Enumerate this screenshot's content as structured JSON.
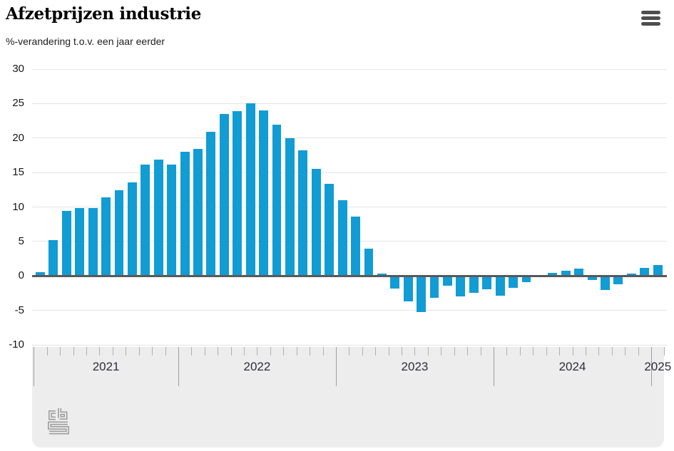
{
  "header": {
    "title": "Afzetprijzen industrie",
    "subtitle": "%-verandering t.o.v. een jaar eerder"
  },
  "menu": {
    "icon": "hamburger-menu-icon"
  },
  "branding": {
    "logo": "cbs-logo"
  },
  "colors": {
    "bar": "#119cd4",
    "grid": "#e4e4e4",
    "zero_line": "#58585c",
    "axis_band_background": "#ededee",
    "tick_small": "#b1b1b1",
    "tick_long": "#9e9e9e",
    "year_label": "#2d2d3a",
    "logo_gray": "#9e9e9e"
  },
  "chart_data": {
    "type": "bar",
    "title": "Afzetprijzen industrie",
    "subtitle": "%-verandering t.o.v. een jaar eerder",
    "unit": "%",
    "ylim": [
      -10,
      30
    ],
    "yticks": [
      30,
      25,
      20,
      15,
      10,
      5,
      0,
      -5,
      -10
    ],
    "grid": true,
    "legend": "none",
    "x_unit": "month",
    "first_month": "2021-02",
    "last_month": "2025-01",
    "year_labels": [
      "2021",
      "2022",
      "2023",
      "2024",
      "2025"
    ],
    "year_boundary_indices": [
      0,
      11,
      23,
      35,
      47,
      48
    ],
    "months": [
      "2021-02",
      "2021-03",
      "2021-04",
      "2021-05",
      "2021-06",
      "2021-07",
      "2021-08",
      "2021-09",
      "2021-10",
      "2021-11",
      "2021-12",
      "2022-01",
      "2022-02",
      "2022-03",
      "2022-04",
      "2022-05",
      "2022-06",
      "2022-07",
      "2022-08",
      "2022-09",
      "2022-10",
      "2022-11",
      "2022-12",
      "2023-01",
      "2023-02",
      "2023-03",
      "2023-04",
      "2023-05",
      "2023-06",
      "2023-07",
      "2023-08",
      "2023-09",
      "2023-10",
      "2023-11",
      "2023-12",
      "2024-01",
      "2024-02",
      "2024-03",
      "2024-04",
      "2024-05",
      "2024-06",
      "2024-07",
      "2024-08",
      "2024-09",
      "2024-10",
      "2024-11",
      "2024-12",
      "2025-01"
    ],
    "values": [
      0.5,
      5.2,
      9.4,
      9.8,
      9.8,
      11.4,
      12.4,
      13.6,
      16.2,
      16.9,
      16.2,
      18.0,
      18.4,
      20.9,
      23.5,
      23.9,
      25.0,
      24.0,
      21.9,
      20.0,
      18.2,
      15.5,
      13.4,
      11.0,
      8.6,
      4.0,
      0.3,
      -1.8,
      -3.7,
      -5.2,
      -3.2,
      -1.4,
      -3.0,
      -2.5,
      -1.9,
      -2.9,
      -1.7,
      -0.9,
      0.0,
      0.4,
      0.7,
      1.1,
      -0.6,
      -2.0,
      -1.2,
      0.3,
      1.2,
      1.6
    ]
  }
}
